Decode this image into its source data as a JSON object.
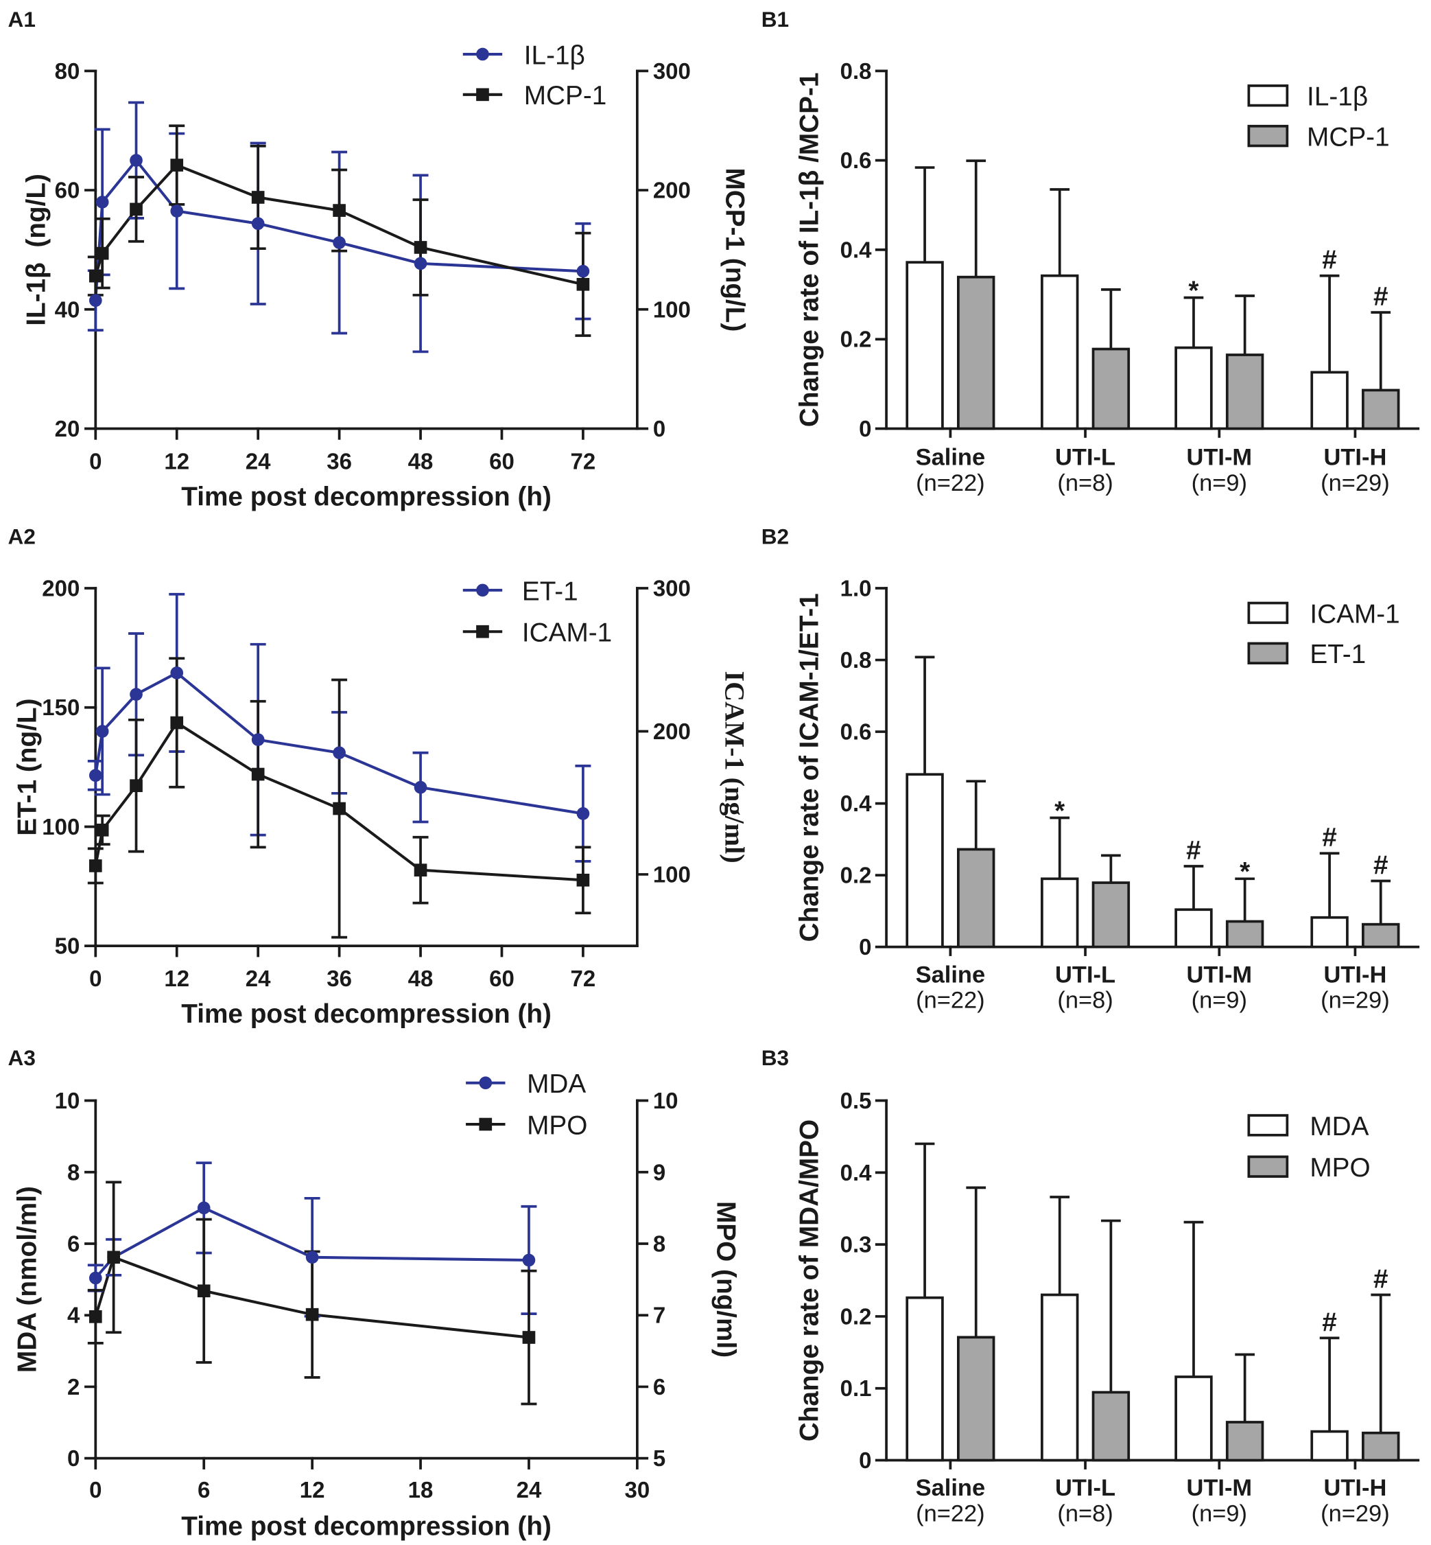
{
  "chart_data": [
    {
      "panel_label": "A1",
      "type": "line",
      "xlabel": "Time post decompression (h)",
      "xlim": [
        0,
        80
      ],
      "xticks": [
        0,
        12,
        24,
        36,
        48,
        60,
        72
      ],
      "xtick_labels": [
        "0",
        "12",
        "24",
        "36",
        "48",
        "60",
        "72"
      ],
      "left_axis": {
        "label": "IL-1β  (ng/L)",
        "ylim": [
          20,
          80
        ],
        "ticks": [
          20,
          40,
          60,
          80
        ],
        "tick_labels": [
          "20",
          "40",
          "60",
          "80"
        ],
        "series": {
          "name": "IL-1β",
          "color": "#2b3595",
          "x": [
            0,
            1,
            6,
            12,
            24,
            36,
            48,
            72
          ],
          "y": [
            41.5,
            58.0,
            65.0,
            56.5,
            54.4,
            51.2,
            47.7,
            46.4
          ],
          "sd": [
            5.0,
            12.2,
            9.7,
            13.0,
            13.5,
            15.2,
            14.8,
            8.0
          ]
        }
      },
      "right_axis": {
        "label": "MCP-1 (ng/L)",
        "ylim": [
          0,
          300
        ],
        "ticks": [
          0,
          100,
          200,
          300
        ],
        "tick_labels": [
          "0",
          "100",
          "200",
          "300"
        ],
        "series": {
          "name": "MCP-1",
          "color": "#1a1a1a",
          "x": [
            0,
            1,
            6,
            12,
            24,
            36,
            48,
            72
          ],
          "y": [
            128,
            147,
            184,
            221,
            194,
            183,
            152,
            121
          ],
          "sd": [
            16,
            29,
            27,
            33,
            43,
            34,
            40,
            43
          ]
        }
      }
    },
    {
      "panel_label": "B1",
      "type": "bar",
      "ylabel": "Change rate of IL-1β /MCP-1",
      "ylim": [
        0,
        0.8
      ],
      "yticks": [
        0,
        0.2,
        0.4,
        0.6,
        0.8
      ],
      "ytick_labels": [
        "0",
        "0.2",
        "0.4",
        "0.6",
        "0.8"
      ],
      "categories": [
        "Saline",
        "UTI-L",
        "UTI-M",
        "UTI-H"
      ],
      "category_n": [
        "(n=22)",
        "(n=8)",
        "(n=9)",
        "(n=29)"
      ],
      "series": [
        {
          "name": "IL-1β",
          "fill": "#ffffff",
          "values": [
            0.372,
            0.342,
            0.181,
            0.126
          ],
          "error_upper": [
            0.584,
            0.535,
            0.293,
            0.342
          ]
        },
        {
          "name": "MCP-1",
          "fill": "#a6a6a6",
          "values": [
            0.339,
            0.178,
            0.165,
            0.086
          ],
          "error_upper": [
            0.599,
            0.311,
            0.297,
            0.26
          ]
        }
      ],
      "annotations": [
        {
          "series": 0,
          "category": 2,
          "text": "*"
        },
        {
          "series": 0,
          "category": 3,
          "text": "#"
        },
        {
          "series": 1,
          "category": 3,
          "text": "#"
        }
      ]
    },
    {
      "panel_label": "A2",
      "type": "line",
      "xlabel": "Time post decompression (h)",
      "xlim": [
        0,
        80
      ],
      "xticks": [
        0,
        12,
        24,
        36,
        48,
        60,
        72
      ],
      "xtick_labels": [
        "0",
        "12",
        "24",
        "36",
        "48",
        "60",
        "72"
      ],
      "left_axis": {
        "label": "ET-1 (ng/L)",
        "ylim": [
          50,
          200
        ],
        "ticks": [
          50,
          100,
          150,
          200
        ],
        "tick_labels": [
          "50",
          "100",
          "150",
          "200"
        ],
        "series": {
          "name": "ET-1",
          "color": "#2b3595",
          "x": [
            0,
            1,
            6,
            12,
            24,
            36,
            48,
            72
          ],
          "y": [
            121.5,
            140,
            155.5,
            164.5,
            136.5,
            131,
            116.5,
            105.5
          ],
          "sd": [
            6,
            26.5,
            25.5,
            33,
            40,
            17,
            14.5,
            20
          ]
        }
      },
      "right_axis": {
        "label": "ICAM-1 (ng/ml)",
        "ylim": [
          50,
          300
        ],
        "ticks": [
          100,
          200,
          300
        ],
        "tick_labels": [
          "100",
          "200",
          "300"
        ],
        "series": {
          "name": "ICAM-1",
          "color": "#1a1a1a",
          "x": [
            0,
            1,
            6,
            12,
            24,
            36,
            48,
            72
          ],
          "y": [
            106,
            131,
            162,
            206,
            170,
            146,
            103,
            96
          ],
          "sd": [
            12,
            10,
            46,
            45,
            51,
            90,
            23,
            23
          ]
        }
      }
    },
    {
      "panel_label": "B2",
      "type": "bar",
      "ylabel": "Change rate of ICAM-1/ET-1",
      "ylim": [
        0,
        1.0
      ],
      "yticks": [
        0,
        0.2,
        0.4,
        0.6,
        0.8,
        1.0
      ],
      "ytick_labels": [
        "0",
        "0.2",
        "0.4",
        "0.6",
        "0.8",
        "1.0"
      ],
      "categories": [
        "Saline",
        "UTI-L",
        "UTI-M",
        "UTI-H"
      ],
      "category_n": [
        "(n=22)",
        "(n=8)",
        "(n=9)",
        "(n=29)"
      ],
      "series": [
        {
          "name": "ICAM-1",
          "fill": "#ffffff",
          "values": [
            0.481,
            0.19,
            0.104,
            0.082
          ],
          "error_upper": [
            0.808,
            0.36,
            0.225,
            0.261
          ]
        },
        {
          "name": "ET-1",
          "fill": "#a6a6a6",
          "values": [
            0.272,
            0.179,
            0.071,
            0.063
          ],
          "error_upper": [
            0.462,
            0.255,
            0.19,
            0.184
          ]
        }
      ],
      "annotations": [
        {
          "series": 0,
          "category": 1,
          "text": "*"
        },
        {
          "series": 0,
          "category": 2,
          "text": "#"
        },
        {
          "series": 1,
          "category": 2,
          "text": "*"
        },
        {
          "series": 0,
          "category": 3,
          "text": "#"
        },
        {
          "series": 1,
          "category": 3,
          "text": "#"
        }
      ]
    },
    {
      "panel_label": "A3",
      "type": "line",
      "xlabel": "Time post decompression (h)",
      "xlim": [
        0,
        30
      ],
      "xticks": [
        0,
        6,
        12,
        18,
        24,
        30
      ],
      "xtick_labels": [
        "0",
        "6",
        "12",
        "18",
        "24",
        "30"
      ],
      "left_axis": {
        "label": "MDA (nmol/ml)",
        "ylim": [
          0,
          10
        ],
        "ticks": [
          0,
          2,
          4,
          6,
          8,
          10
        ],
        "tick_labels": [
          "0",
          "2",
          "4",
          "6",
          "8",
          "10"
        ],
        "series": {
          "name": "MDA",
          "color": "#2b3595",
          "x": [
            0,
            1,
            6,
            12,
            24
          ],
          "y": [
            5.04,
            5.62,
            7.0,
            5.62,
            5.54
          ],
          "sd": [
            0.36,
            0.5,
            1.26,
            1.65,
            1.5
          ]
        }
      },
      "right_axis": {
        "label": "MPO (ng/ml)",
        "ylim": [
          5,
          10
        ],
        "ticks": [
          5,
          6,
          7,
          8,
          9,
          10
        ],
        "tick_labels": [
          "5",
          "6",
          "7",
          "8",
          "9",
          "10"
        ],
        "series": {
          "name": "MPO",
          "color": "#1a1a1a",
          "x": [
            0,
            1,
            6,
            12,
            24
          ],
          "y": [
            6.98,
            7.81,
            7.34,
            7.01,
            6.69
          ],
          "sd": [
            0.37,
            1.05,
            1.0,
            0.88,
            0.93
          ]
        }
      }
    },
    {
      "panel_label": "B3",
      "type": "bar",
      "ylabel": "Change rate of MDA/MPO",
      "ylim": [
        0,
        0.5
      ],
      "yticks": [
        0,
        0.1,
        0.2,
        0.3,
        0.4,
        0.5
      ],
      "ytick_labels": [
        "0",
        "0.1",
        "0.2",
        "0.3",
        "0.4",
        "0.5"
      ],
      "categories": [
        "Saline",
        "UTI-L",
        "UTI-M",
        "UTI-H"
      ],
      "category_n": [
        "(n=22)",
        "(n=8)",
        "(n=9)",
        "(n=29)"
      ],
      "series": [
        {
          "name": "MDA",
          "fill": "#ffffff",
          "values": [
            0.226,
            0.23,
            0.116,
            0.04
          ],
          "error_upper": [
            0.44,
            0.366,
            0.331,
            0.17
          ]
        },
        {
          "name": "MPO",
          "fill": "#a6a6a6",
          "values": [
            0.171,
            0.0945,
            0.053,
            0.038
          ],
          "error_upper": [
            0.379,
            0.333,
            0.147,
            0.23
          ]
        }
      ],
      "annotations": [
        {
          "series": 0,
          "category": 3,
          "text": "#"
        },
        {
          "series": 1,
          "category": 3,
          "text": "#"
        }
      ]
    }
  ]
}
